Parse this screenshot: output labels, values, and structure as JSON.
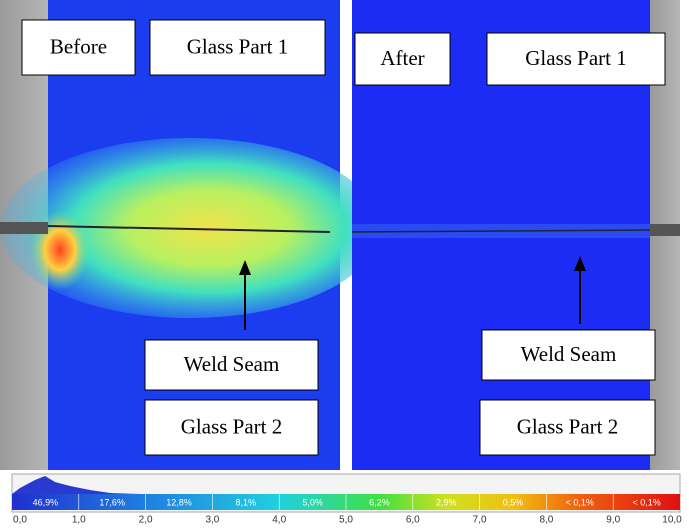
{
  "panels": [
    {
      "label": "Before",
      "top_label": "Glass Part 1",
      "seam_label": "Weld Seam",
      "bottom_label": "Glass Part 2"
    },
    {
      "label": "After",
      "top_label": "Glass Part 1",
      "seam_label": "Weld Seam",
      "bottom_label": "Glass Part 2"
    }
  ],
  "colorbar": {
    "segments": [
      "46,9%",
      "17,6%",
      "12,8%",
      "8,1%",
      "5,0%",
      "6,2%",
      "2,9%",
      "0,5%",
      "< 0,1%",
      "< 0,1%"
    ],
    "ticks": [
      "0,0",
      "1,0",
      "2,0",
      "3,0",
      "4,0",
      "5,0",
      "6,0",
      "7,0",
      "8,0",
      "9,0",
      "10,0"
    ]
  }
}
